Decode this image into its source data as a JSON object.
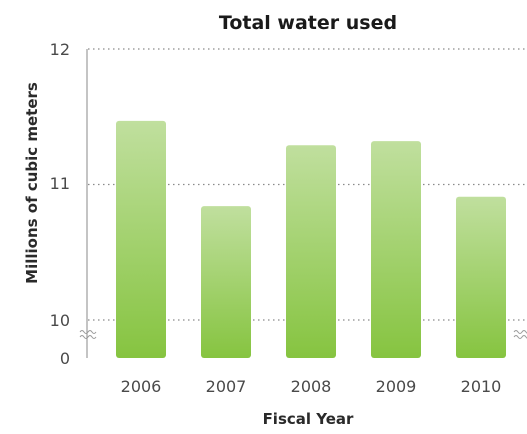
{
  "chart_data": {
    "type": "bar",
    "title": "Total water used",
    "xlabel": "Fiscal Year",
    "ylabel": "Millions of cubic meters",
    "categories": [
      "2006",
      "2007",
      "2008",
      "2009",
      "2010"
    ],
    "values": [
      11.47,
      10.84,
      11.29,
      11.32,
      10.91
    ],
    "y_ticks": [
      "0",
      "10",
      "11",
      "12"
    ],
    "ylim": [
      10,
      12
    ],
    "axis_break": {
      "from": 0,
      "to": 10
    },
    "grid": true,
    "legend": "none",
    "colors": {
      "bar_top": "#c0df9e",
      "bar_bottom": "#86c440",
      "grid": "#8a8a8a",
      "axis": "#8a8a8a"
    }
  }
}
